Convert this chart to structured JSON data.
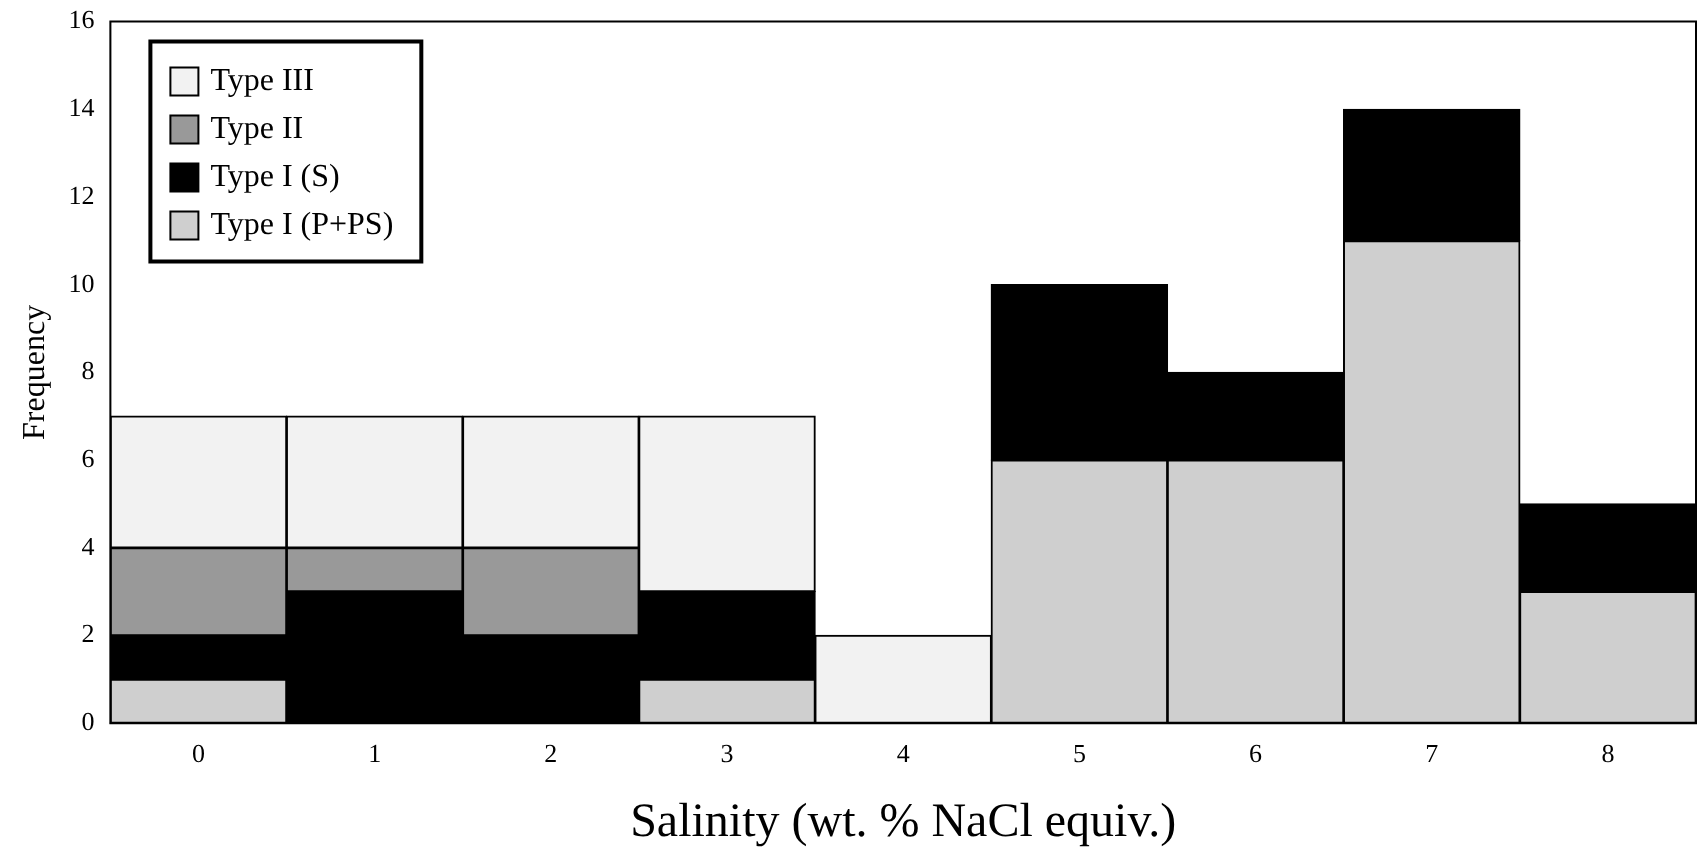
{
  "chart_data": {
    "type": "bar",
    "stacked": true,
    "xlabel": "Salinity (wt. % NaCl equiv.)",
    "ylabel": "Frequency",
    "categories": [
      "0",
      "1",
      "2",
      "3",
      "4",
      "5",
      "6",
      "7",
      "8"
    ],
    "series": [
      {
        "name": "Type I (P+PS)",
        "color": "#cfcfcf",
        "values": [
          1,
          0,
          0,
          1,
          0,
          6,
          6,
          11,
          3
        ]
      },
      {
        "name": "Type I (S)",
        "color": "#000000",
        "values": [
          1,
          3,
          2,
          2,
          0,
          4,
          2,
          3,
          2
        ]
      },
      {
        "name": "Type II",
        "color": "#999999",
        "values": [
          2,
          1,
          2,
          0,
          0,
          0,
          0,
          0,
          0
        ]
      },
      {
        "name": "Type III",
        "color": "#f2f2f2",
        "values": [
          3,
          3,
          3,
          4,
          2,
          0,
          0,
          0,
          0
        ]
      }
    ],
    "ylim": [
      0,
      16
    ],
    "yticks": [
      0,
      2,
      4,
      6,
      8,
      10,
      12,
      14,
      16
    ],
    "grid": false,
    "legend": "top left"
  }
}
